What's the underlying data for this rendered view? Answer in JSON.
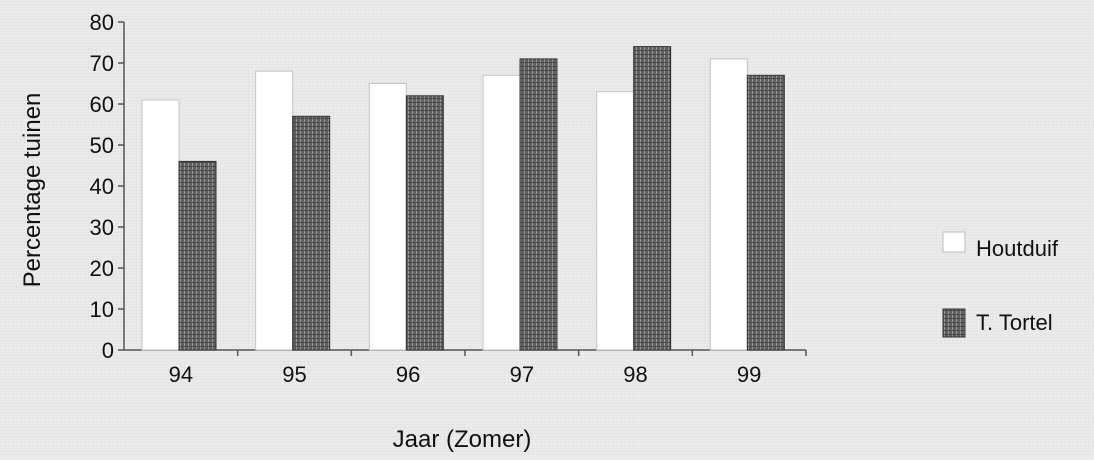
{
  "chart_data": {
    "type": "bar",
    "xlabel": "Jaar (Zomer)",
    "ylabel": "Percentage tuinen",
    "categories": [
      "94",
      "95",
      "96",
      "97",
      "98",
      "99"
    ],
    "ylim": [
      0,
      80
    ],
    "yticks": [
      "0",
      "10",
      "20",
      "30",
      "40",
      "50",
      "60",
      "70",
      "80"
    ],
    "series": [
      {
        "name": "Houtduif",
        "values": [
          61,
          68,
          65,
          67,
          63,
          71
        ],
        "color": "#ffffff"
      },
      {
        "name": "T. Tortel",
        "values": [
          46,
          57,
          62,
          71,
          74,
          67
        ],
        "color": "#6e6e6e"
      }
    ],
    "legend": "right",
    "grid": false
  }
}
